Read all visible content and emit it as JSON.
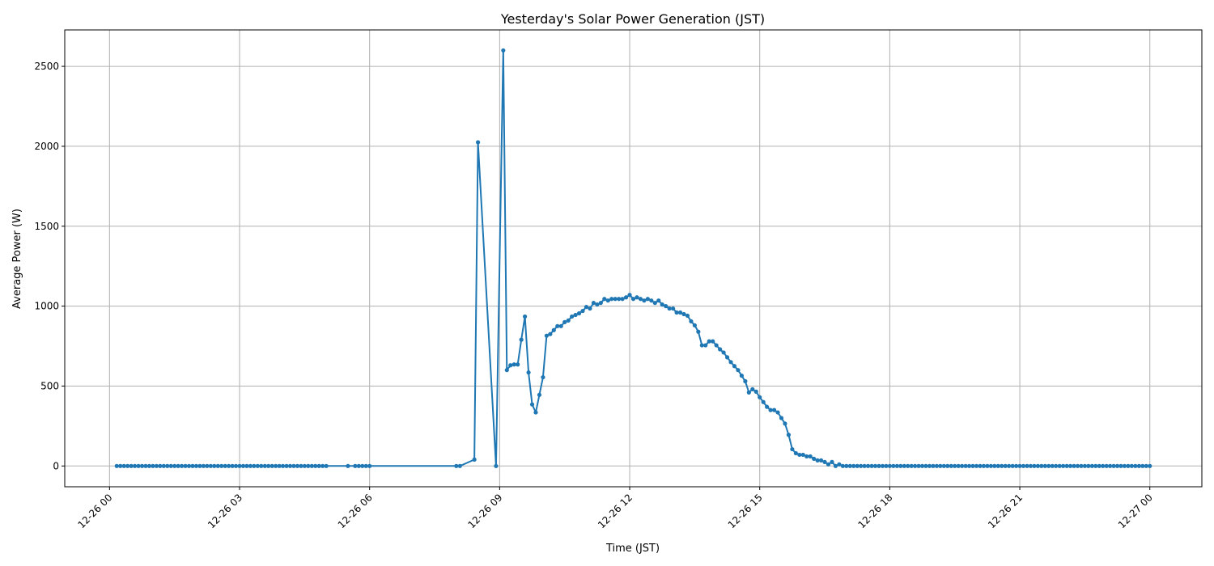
{
  "chart_data": {
    "type": "line",
    "title": "Yesterday's Solar Power Generation (JST)",
    "xlabel": "Time (JST)",
    "ylabel": "Average Power (W)",
    "xlim": [
      "12-25 22:58",
      "12-27 01:12"
    ],
    "ylim": [
      -130,
      2728
    ],
    "grid": true,
    "marker": "circle",
    "color": "#1f77b4",
    "x_ticks": [
      "12-26 00",
      "12-26 03",
      "12-26 06",
      "12-26 09",
      "12-26 12",
      "12-26 15",
      "12-26 18",
      "12-26 21",
      "12-27 00"
    ],
    "y_ticks": [
      0,
      500,
      1000,
      1500,
      2000,
      2500
    ],
    "series": [
      {
        "points": [
          [
            "12-26 00:10",
            0
          ],
          [
            "12-26 00:15",
            0
          ],
          [
            "12-26 00:20",
            0
          ],
          [
            "12-26 00:25",
            0
          ],
          [
            "12-26 00:30",
            0
          ],
          [
            "12-26 00:35",
            0
          ],
          [
            "12-26 00:40",
            0
          ],
          [
            "12-26 00:45",
            0
          ],
          [
            "12-26 00:50",
            0
          ],
          [
            "12-26 00:55",
            0
          ],
          [
            "12-26 01:00",
            0
          ],
          [
            "12-26 01:05",
            0
          ],
          [
            "12-26 01:10",
            0
          ],
          [
            "12-26 01:15",
            0
          ],
          [
            "12-26 01:20",
            0
          ],
          [
            "12-26 01:25",
            0
          ],
          [
            "12-26 01:30",
            0
          ],
          [
            "12-26 01:35",
            0
          ],
          [
            "12-26 01:40",
            0
          ],
          [
            "12-26 01:45",
            0
          ],
          [
            "12-26 01:50",
            0
          ],
          [
            "12-26 01:55",
            0
          ],
          [
            "12-26 02:00",
            0
          ],
          [
            "12-26 02:05",
            0
          ],
          [
            "12-26 02:10",
            0
          ],
          [
            "12-26 02:15",
            0
          ],
          [
            "12-26 02:20",
            0
          ],
          [
            "12-26 02:25",
            0
          ],
          [
            "12-26 02:30",
            0
          ],
          [
            "12-26 02:35",
            0
          ],
          [
            "12-26 02:40",
            0
          ],
          [
            "12-26 02:45",
            0
          ],
          [
            "12-26 02:50",
            0
          ],
          [
            "12-26 02:55",
            0
          ],
          [
            "12-26 03:00",
            0
          ],
          [
            "12-26 03:05",
            0
          ],
          [
            "12-26 03:10",
            0
          ],
          [
            "12-26 03:15",
            0
          ],
          [
            "12-26 03:20",
            0
          ],
          [
            "12-26 03:25",
            0
          ],
          [
            "12-26 03:30",
            0
          ],
          [
            "12-26 03:35",
            0
          ],
          [
            "12-26 03:40",
            0
          ],
          [
            "12-26 03:45",
            0
          ],
          [
            "12-26 03:50",
            0
          ],
          [
            "12-26 03:55",
            0
          ],
          [
            "12-26 04:00",
            0
          ],
          [
            "12-26 04:05",
            0
          ],
          [
            "12-26 04:10",
            0
          ],
          [
            "12-26 04:15",
            0
          ],
          [
            "12-26 04:20",
            0
          ],
          [
            "12-26 04:25",
            0
          ],
          [
            "12-26 04:30",
            0
          ],
          [
            "12-26 04:35",
            0
          ],
          [
            "12-26 04:40",
            0
          ],
          [
            "12-26 04:45",
            0
          ],
          [
            "12-26 04:50",
            0
          ],
          [
            "12-26 04:55",
            0
          ],
          [
            "12-26 05:00",
            0
          ],
          [
            "12-26 05:30",
            0
          ],
          [
            "12-26 05:40",
            0
          ],
          [
            "12-26 05:45",
            0
          ],
          [
            "12-26 05:50",
            0
          ],
          [
            "12-26 05:55",
            0
          ],
          [
            "12-26 06:00",
            0
          ],
          [
            "12-26 08:00",
            0
          ],
          [
            "12-26 08:05",
            0
          ],
          [
            "12-26 08:25",
            40
          ],
          [
            "12-26 08:30",
            2025
          ],
          [
            "12-26 08:55",
            0
          ],
          [
            "12-26 09:05",
            2600
          ],
          [
            "12-26 09:10",
            600
          ],
          [
            "12-26 09:15",
            630
          ],
          [
            "12-26 09:20",
            635
          ],
          [
            "12-26 09:25",
            635
          ],
          [
            "12-26 09:30",
            790
          ],
          [
            "12-26 09:35",
            935
          ],
          [
            "12-26 09:40",
            585
          ],
          [
            "12-26 09:45",
            385
          ],
          [
            "12-26 09:50",
            335
          ],
          [
            "12-26 09:55",
            445
          ],
          [
            "12-26 10:00",
            555
          ],
          [
            "12-26 10:05",
            815
          ],
          [
            "12-26 10:10",
            825
          ],
          [
            "12-26 10:15",
            850
          ],
          [
            "12-26 10:20",
            875
          ],
          [
            "12-26 10:25",
            875
          ],
          [
            "12-26 10:30",
            900
          ],
          [
            "12-26 10:35",
            910
          ],
          [
            "12-26 10:40",
            935
          ],
          [
            "12-26 10:45",
            945
          ],
          [
            "12-26 10:50",
            955
          ],
          [
            "12-26 10:55",
            970
          ],
          [
            "12-26 11:00",
            995
          ],
          [
            "12-26 11:05",
            985
          ],
          [
            "12-26 11:10",
            1020
          ],
          [
            "12-26 11:15",
            1010
          ],
          [
            "12-26 11:20",
            1020
          ],
          [
            "12-26 11:25",
            1045
          ],
          [
            "12-26 11:30",
            1035
          ],
          [
            "12-26 11:35",
            1045
          ],
          [
            "12-26 11:40",
            1045
          ],
          [
            "12-26 11:45",
            1045
          ],
          [
            "12-26 11:50",
            1045
          ],
          [
            "12-26 11:55",
            1055
          ],
          [
            "12-26 12:00",
            1070
          ],
          [
            "12-26 12:05",
            1045
          ],
          [
            "12-26 12:10",
            1055
          ],
          [
            "12-26 12:15",
            1045
          ],
          [
            "12-26 12:20",
            1035
          ],
          [
            "12-26 12:25",
            1045
          ],
          [
            "12-26 12:30",
            1035
          ],
          [
            "12-26 12:35",
            1020
          ],
          [
            "12-26 12:40",
            1035
          ],
          [
            "12-26 12:45",
            1010
          ],
          [
            "12-26 12:50",
            1000
          ],
          [
            "12-26 12:55",
            985
          ],
          [
            "12-26 13:00",
            985
          ],
          [
            "12-26 13:05",
            960
          ],
          [
            "12-26 13:10",
            960
          ],
          [
            "12-26 13:15",
            950
          ],
          [
            "12-26 13:20",
            940
          ],
          [
            "12-26 13:25",
            905
          ],
          [
            "12-26 13:30",
            880
          ],
          [
            "12-26 13:35",
            840
          ],
          [
            "12-26 13:40",
            755
          ],
          [
            "12-26 13:45",
            755
          ],
          [
            "12-26 13:50",
            780
          ],
          [
            "12-26 13:55",
            780
          ],
          [
            "12-26 14:00",
            755
          ],
          [
            "12-26 14:05",
            730
          ],
          [
            "12-26 14:10",
            710
          ],
          [
            "12-26 14:15",
            680
          ],
          [
            "12-26 14:20",
            650
          ],
          [
            "12-26 14:25",
            625
          ],
          [
            "12-26 14:30",
            600
          ],
          [
            "12-26 14:35",
            565
          ],
          [
            "12-26 14:40",
            530
          ],
          [
            "12-26 14:45",
            460
          ],
          [
            "12-26 14:50",
            480
          ],
          [
            "12-26 14:55",
            465
          ],
          [
            "12-26 15:00",
            430
          ],
          [
            "12-26 15:05",
            400
          ],
          [
            "12-26 15:10",
            370
          ],
          [
            "12-26 15:15",
            350
          ],
          [
            "12-26 15:20",
            350
          ],
          [
            "12-26 15:25",
            335
          ],
          [
            "12-26 15:30",
            300
          ],
          [
            "12-26 15:35",
            265
          ],
          [
            "12-26 15:40",
            195
          ],
          [
            "12-26 15:45",
            105
          ],
          [
            "12-26 15:50",
            80
          ],
          [
            "12-26 15:55",
            70
          ],
          [
            "12-26 16:00",
            70
          ],
          [
            "12-26 16:05",
            60
          ],
          [
            "12-26 16:10",
            60
          ],
          [
            "12-26 16:15",
            45
          ],
          [
            "12-26 16:20",
            35
          ],
          [
            "12-26 16:25",
            35
          ],
          [
            "12-26 16:30",
            25
          ],
          [
            "12-26 16:35",
            10
          ],
          [
            "12-26 16:40",
            25
          ],
          [
            "12-26 16:45",
            0
          ],
          [
            "12-26 16:50",
            10
          ],
          [
            "12-26 16:55",
            0
          ],
          [
            "12-26 17:00",
            0
          ],
          [
            "12-26 17:05",
            0
          ],
          [
            "12-26 17:10",
            0
          ],
          [
            "12-26 17:15",
            0
          ],
          [
            "12-26 17:20",
            0
          ],
          [
            "12-26 17:25",
            0
          ],
          [
            "12-26 17:30",
            0
          ],
          [
            "12-26 17:35",
            0
          ],
          [
            "12-26 17:40",
            0
          ],
          [
            "12-26 17:45",
            0
          ],
          [
            "12-26 17:50",
            0
          ],
          [
            "12-26 17:55",
            0
          ],
          [
            "12-26 18:00",
            0
          ],
          [
            "12-26 18:05",
            0
          ],
          [
            "12-26 18:10",
            0
          ],
          [
            "12-26 18:15",
            0
          ],
          [
            "12-26 18:20",
            0
          ],
          [
            "12-26 18:25",
            0
          ],
          [
            "12-26 18:30",
            0
          ],
          [
            "12-26 18:35",
            0
          ],
          [
            "12-26 18:40",
            0
          ],
          [
            "12-26 18:45",
            0
          ],
          [
            "12-26 18:50",
            0
          ],
          [
            "12-26 18:55",
            0
          ],
          [
            "12-26 19:00",
            0
          ],
          [
            "12-26 19:05",
            0
          ],
          [
            "12-26 19:10",
            0
          ],
          [
            "12-26 19:15",
            0
          ],
          [
            "12-26 19:20",
            0
          ],
          [
            "12-26 19:25",
            0
          ],
          [
            "12-26 19:30",
            0
          ],
          [
            "12-26 19:35",
            0
          ],
          [
            "12-26 19:40",
            0
          ],
          [
            "12-26 19:45",
            0
          ],
          [
            "12-26 19:50",
            0
          ],
          [
            "12-26 19:55",
            0
          ],
          [
            "12-26 20:00",
            0
          ],
          [
            "12-26 20:05",
            0
          ],
          [
            "12-26 20:10",
            0
          ],
          [
            "12-26 20:15",
            0
          ],
          [
            "12-26 20:20",
            0
          ],
          [
            "12-26 20:25",
            0
          ],
          [
            "12-26 20:30",
            0
          ],
          [
            "12-26 20:35",
            0
          ],
          [
            "12-26 20:40",
            0
          ],
          [
            "12-26 20:45",
            0
          ],
          [
            "12-26 20:50",
            0
          ],
          [
            "12-26 20:55",
            0
          ],
          [
            "12-26 21:00",
            0
          ],
          [
            "12-26 21:05",
            0
          ],
          [
            "12-26 21:10",
            0
          ],
          [
            "12-26 21:15",
            0
          ],
          [
            "12-26 21:20",
            0
          ],
          [
            "12-26 21:25",
            0
          ],
          [
            "12-26 21:30",
            0
          ],
          [
            "12-26 21:35",
            0
          ],
          [
            "12-26 21:40",
            0
          ],
          [
            "12-26 21:45",
            0
          ],
          [
            "12-26 21:50",
            0
          ],
          [
            "12-26 21:55",
            0
          ],
          [
            "12-26 22:00",
            0
          ],
          [
            "12-26 22:05",
            0
          ],
          [
            "12-26 22:10",
            0
          ],
          [
            "12-26 22:15",
            0
          ],
          [
            "12-26 22:20",
            0
          ],
          [
            "12-26 22:25",
            0
          ],
          [
            "12-26 22:30",
            0
          ],
          [
            "12-26 22:35",
            0
          ],
          [
            "12-26 22:40",
            0
          ],
          [
            "12-26 22:45",
            0
          ],
          [
            "12-26 22:50",
            0
          ],
          [
            "12-26 22:55",
            0
          ],
          [
            "12-26 23:00",
            0
          ],
          [
            "12-26 23:05",
            0
          ],
          [
            "12-26 23:10",
            0
          ],
          [
            "12-26 23:15",
            0
          ],
          [
            "12-26 23:20",
            0
          ],
          [
            "12-26 23:25",
            0
          ],
          [
            "12-26 23:30",
            0
          ],
          [
            "12-26 23:35",
            0
          ],
          [
            "12-26 23:40",
            0
          ],
          [
            "12-26 23:45",
            0
          ],
          [
            "12-26 23:50",
            0
          ],
          [
            "12-26 23:55",
            0
          ],
          [
            "12-27 00:00",
            0
          ]
        ]
      }
    ]
  }
}
